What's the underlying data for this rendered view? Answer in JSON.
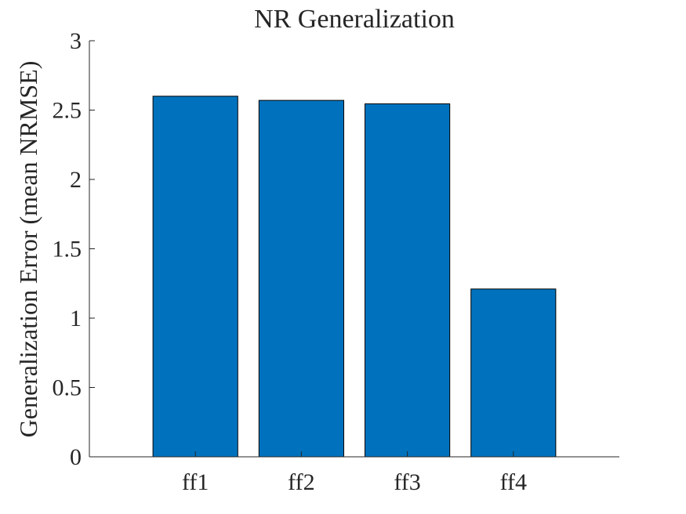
{
  "chart_data": {
    "type": "bar",
    "title": "NR Generalization",
    "xlabel": "",
    "ylabel": "Generalization Error (mean NRMSE)",
    "categories": [
      "ff1",
      "ff2",
      "ff3",
      "ff4"
    ],
    "values": [
      2.6,
      2.57,
      2.545,
      1.21
    ],
    "ylim": [
      0,
      3
    ],
    "xlim": [
      0,
      5
    ],
    "yticks": [
      0,
      0.5,
      1,
      1.5,
      2,
      2.5,
      3
    ],
    "ytick_labels": [
      "0",
      "0.5",
      "1",
      "1.5",
      "2",
      "2.5",
      "3"
    ],
    "grid": false,
    "legend": "none",
    "bar_color": "#0072BD",
    "axis_color": "#262626"
  }
}
